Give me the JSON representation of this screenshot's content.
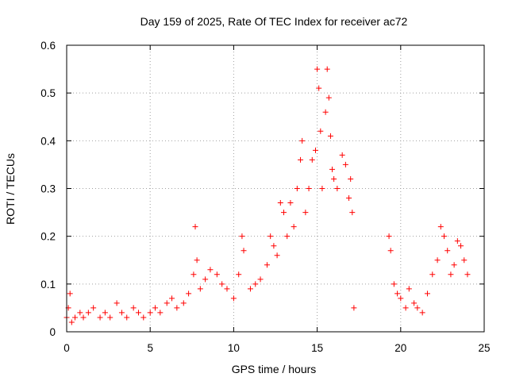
{
  "chart_data": {
    "type": "scatter",
    "title": "Day 159 of 2025, Rate Of TEC Index for receiver ac72",
    "xlabel": "GPS time / hours",
    "ylabel": "ROTI / TECUs",
    "xlim": [
      0,
      25
    ],
    "ylim": [
      0,
      0.6
    ],
    "xticks": [
      "0",
      "5",
      "10",
      "15",
      "20",
      "25"
    ],
    "yticks": [
      "0",
      "0.1",
      "0.2",
      "0.3",
      "0.4",
      "0.5",
      "0.6"
    ],
    "grid": true,
    "marker": "+",
    "color": "#ff0000",
    "series": [
      {
        "points": [
          [
            0.0,
            0.03
          ],
          [
            0.1,
            0.05
          ],
          [
            0.2,
            0.08
          ],
          [
            0.3,
            0.02
          ],
          [
            0.5,
            0.03
          ],
          [
            0.8,
            0.04
          ],
          [
            1.0,
            0.03
          ],
          [
            1.3,
            0.04
          ],
          [
            1.6,
            0.05
          ],
          [
            2.0,
            0.03
          ],
          [
            2.3,
            0.04
          ],
          [
            2.6,
            0.03
          ],
          [
            3.0,
            0.06
          ],
          [
            3.3,
            0.04
          ],
          [
            3.6,
            0.03
          ],
          [
            4.0,
            0.05
          ],
          [
            4.3,
            0.04
          ],
          [
            4.6,
            0.03
          ],
          [
            5.0,
            0.04
          ],
          [
            5.3,
            0.05
          ],
          [
            5.6,
            0.04
          ],
          [
            6.0,
            0.06
          ],
          [
            6.3,
            0.07
          ],
          [
            6.6,
            0.05
          ],
          [
            7.0,
            0.06
          ],
          [
            7.3,
            0.08
          ],
          [
            7.6,
            0.12
          ],
          [
            7.7,
            0.22
          ],
          [
            7.8,
            0.15
          ],
          [
            8.0,
            0.09
          ],
          [
            8.3,
            0.11
          ],
          [
            8.6,
            0.13
          ],
          [
            9.0,
            0.12
          ],
          [
            9.3,
            0.1
          ],
          [
            9.6,
            0.09
          ],
          [
            10.0,
            0.07
          ],
          [
            10.3,
            0.12
          ],
          [
            10.5,
            0.2
          ],
          [
            10.6,
            0.17
          ],
          [
            11.0,
            0.09
          ],
          [
            11.3,
            0.1
          ],
          [
            11.6,
            0.11
          ],
          [
            12.0,
            0.14
          ],
          [
            12.2,
            0.2
          ],
          [
            12.4,
            0.18
          ],
          [
            12.6,
            0.16
          ],
          [
            12.8,
            0.27
          ],
          [
            13.0,
            0.25
          ],
          [
            13.2,
            0.2
          ],
          [
            13.4,
            0.27
          ],
          [
            13.6,
            0.22
          ],
          [
            13.8,
            0.3
          ],
          [
            14.0,
            0.36
          ],
          [
            14.1,
            0.4
          ],
          [
            14.3,
            0.25
          ],
          [
            14.5,
            0.3
          ],
          [
            14.7,
            0.36
          ],
          [
            14.9,
            0.38
          ],
          [
            15.0,
            0.55
          ],
          [
            15.1,
            0.51
          ],
          [
            15.2,
            0.42
          ],
          [
            15.3,
            0.3
          ],
          [
            15.5,
            0.46
          ],
          [
            15.6,
            0.55
          ],
          [
            15.7,
            0.49
          ],
          [
            15.8,
            0.41
          ],
          [
            15.9,
            0.34
          ],
          [
            16.0,
            0.32
          ],
          [
            16.2,
            0.3
          ],
          [
            16.5,
            0.37
          ],
          [
            16.7,
            0.35
          ],
          [
            16.9,
            0.28
          ],
          [
            17.0,
            0.32
          ],
          [
            17.1,
            0.25
          ],
          [
            17.2,
            0.05
          ],
          [
            19.3,
            0.2
          ],
          [
            19.4,
            0.17
          ],
          [
            19.6,
            0.1
          ],
          [
            19.8,
            0.08
          ],
          [
            20.0,
            0.07
          ],
          [
            20.3,
            0.05
          ],
          [
            20.5,
            0.09
          ],
          [
            20.8,
            0.06
          ],
          [
            21.0,
            0.05
          ],
          [
            21.3,
            0.04
          ],
          [
            21.6,
            0.08
          ],
          [
            21.9,
            0.12
          ],
          [
            22.2,
            0.15
          ],
          [
            22.4,
            0.22
          ],
          [
            22.6,
            0.2
          ],
          [
            22.8,
            0.17
          ],
          [
            23.0,
            0.12
          ],
          [
            23.2,
            0.14
          ],
          [
            23.4,
            0.19
          ],
          [
            23.6,
            0.18
          ],
          [
            23.8,
            0.15
          ],
          [
            24.0,
            0.12
          ]
        ]
      }
    ]
  }
}
